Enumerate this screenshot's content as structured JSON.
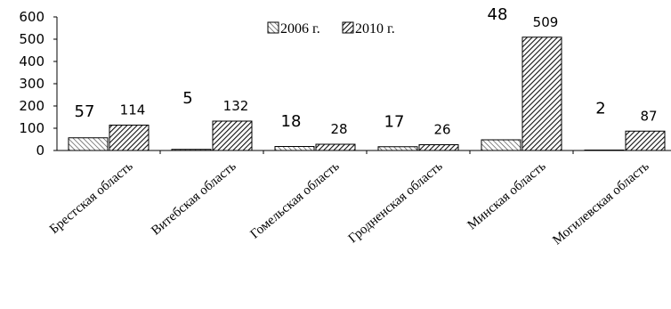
{
  "chart_data": {
    "type": "bar",
    "categories": [
      "Брестская область",
      "Витебская область",
      "Гомельская область",
      "Гродненская область",
      "Минская область",
      "Могилевская область"
    ],
    "series": [
      {
        "name": "2006 г.",
        "values": [
          57,
          5,
          18,
          17,
          48,
          2
        ]
      },
      {
        "name": "2010 г.",
        "values": [
          114,
          132,
          28,
          26,
          509,
          87
        ]
      }
    ],
    "yticks": [
      "0",
      "100",
      "200",
      "300",
      "400",
      "500",
      "600"
    ],
    "ylim": [
      0,
      600
    ],
    "grid": false,
    "legend_position": "top"
  }
}
